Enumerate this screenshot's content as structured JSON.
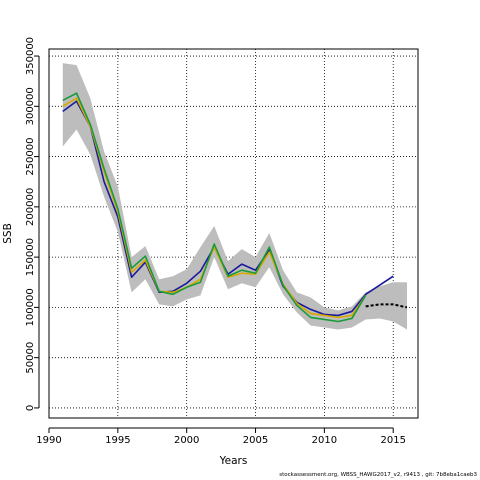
{
  "chart_data": {
    "type": "line",
    "xlabel": "Years",
    "ylabel": "SSB",
    "xlim": [
      1990,
      2016.8
    ],
    "ylim": [
      -10000,
      357000
    ],
    "x_ticks": [
      1990,
      1995,
      2000,
      2005,
      2010,
      2015
    ],
    "y_ticks": [
      0,
      50000,
      100000,
      150000,
      200000,
      250000,
      300000,
      350000
    ],
    "grid": true,
    "band": {
      "x": [
        1991,
        1992,
        1993,
        1994,
        1995,
        1996,
        1997,
        1998,
        1999,
        2000,
        2001,
        2002,
        2003,
        2004,
        2005,
        2006,
        2007,
        2008,
        2009,
        2010,
        2011,
        2012,
        2013,
        2014,
        2015,
        2016
      ],
      "lower": [
        260000,
        277000,
        252000,
        210000,
        175000,
        115000,
        128000,
        103000,
        101000,
        108000,
        112000,
        150000,
        118000,
        124000,
        120000,
        140000,
        113000,
        95000,
        82000,
        80000,
        78000,
        80000,
        88000,
        89000,
        86000,
        78000
      ],
      "upper": [
        343000,
        341000,
        308000,
        255000,
        220000,
        150000,
        161000,
        128000,
        131000,
        138000,
        160000,
        181000,
        146000,
        158000,
        150000,
        174000,
        137000,
        115000,
        110000,
        100000,
        97000,
        101000,
        115000,
        121000,
        125000,
        125000
      ]
    },
    "series": [
      {
        "color": "#1a1a9e",
        "x": [
          1991,
          1992,
          1993,
          1994,
          1995,
          1996,
          1997,
          1998,
          1999,
          2000,
          2001,
          2002,
          2003,
          2004,
          2005,
          2006,
          2007,
          2008,
          2009,
          2010,
          2011,
          2012,
          2013,
          2014,
          2015
        ],
        "values": [
          295000,
          305000,
          280000,
          225000,
          190000,
          130000,
          145000,
          115000,
          116000,
          124000,
          136000,
          160000,
          133000,
          143000,
          137000,
          157000,
          121000,
          105000,
          98000,
          93000,
          92000,
          96000,
          113000,
          122000,
          131000
        ]
      },
      {
        "color": "#d4aa00",
        "x": [
          1991,
          1992,
          1993,
          1994,
          1995,
          1996,
          1997,
          1998,
          1999,
          2000,
          2001,
          2002,
          2003,
          2004,
          2005,
          2006,
          2007,
          2008,
          2009,
          2010,
          2011,
          2012,
          2013
        ],
        "values": [
          300000,
          308000,
          280000,
          235000,
          195000,
          135000,
          147000,
          116000,
          115000,
          120000,
          128000,
          160000,
          130000,
          134000,
          133000,
          155000,
          123000,
          104000,
          94000,
          92000,
          90000,
          92000,
          112000
        ]
      },
      {
        "color": "#1a9b3a",
        "x": [
          1991,
          1992,
          1993,
          1994,
          1995,
          1996,
          1997,
          1998,
          1999,
          2000,
          2001,
          2002,
          2003,
          2004,
          2005,
          2006,
          2007,
          2008,
          2009,
          2010,
          2011,
          2012,
          2013
        ],
        "values": [
          306000,
          313000,
          282000,
          238000,
          198000,
          139000,
          151000,
          116000,
          113000,
          120000,
          125000,
          163000,
          131000,
          137000,
          134000,
          160000,
          122000,
          102000,
          90000,
          88000,
          86000,
          89000,
          112000
        ]
      },
      {
        "color": "#000000",
        "dashed": true,
        "x": [
          2013,
          2014,
          2015,
          2016
        ],
        "values": [
          101000,
          103000,
          103000,
          100000
        ]
      }
    ]
  },
  "footer_text": "stockassessment.org,  WBSS_HAWG2017_v2,  r9413 ,  git:  7b8eba1caeb3"
}
